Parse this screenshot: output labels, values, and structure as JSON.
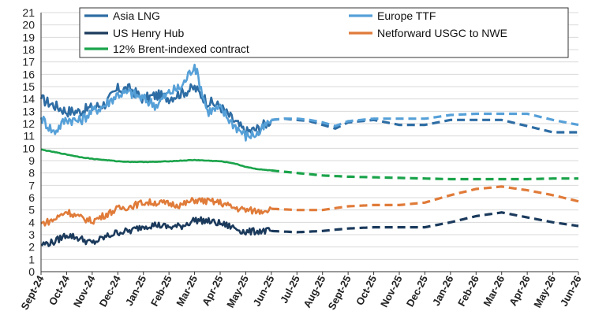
{
  "chart_data": {
    "type": "line",
    "title": "",
    "xlabel": "",
    "ylabel": "",
    "ylim": [
      0,
      21
    ],
    "yticks": [
      0,
      1,
      2,
      3,
      4,
      5,
      6,
      7,
      8,
      9,
      10,
      11,
      12,
      13,
      14,
      15,
      16,
      17,
      18,
      19,
      20,
      21
    ],
    "categories": [
      "Sept-24",
      "Oct-24",
      "Nov-24",
      "Dec-24",
      "Jan-25",
      "Feb-25",
      "Mar-25",
      "Apr-25",
      "May-25",
      "Jun-25",
      "Jul-25",
      "Aug-25",
      "Sept-25",
      "Oct-25",
      "Nov-25",
      "Dec-25",
      "Jan-26",
      "Feb-26",
      "Mar-26",
      "Apr-26",
      "May-26",
      "Jun-26"
    ],
    "grid": true,
    "legend_position": "top",
    "forecast_starts_at": 9.0,
    "series": [
      {
        "name": "Asia LNG",
        "color": "#2e6da4",
        "x": [
          0,
          0.5,
          1,
          1.5,
          2,
          2.5,
          3,
          3.5,
          4,
          4.5,
          5,
          5.5,
          6,
          6.5,
          7,
          7.5,
          8,
          8.5,
          9,
          9.5,
          10,
          10.5,
          11,
          11.5,
          12,
          13,
          14,
          15,
          16,
          17,
          18,
          19,
          20,
          21
        ],
        "values": [
          14.0,
          13.5,
          13.0,
          13.0,
          13.3,
          13.6,
          14.8,
          14.8,
          14.0,
          14.3,
          14.1,
          14.5,
          14.9,
          13.8,
          13.4,
          12.3,
          11.3,
          11.6,
          12.3,
          12.4,
          12.3,
          12.2,
          11.9,
          11.6,
          12.1,
          12.3,
          11.9,
          11.9,
          12.3,
          12.3,
          12.3,
          11.8,
          11.3,
          11.3
        ]
      },
      {
        "name": "Europe TTF",
        "color": "#56a0d8",
        "x": [
          0,
          0.5,
          1,
          1.5,
          2,
          2.5,
          3,
          3.5,
          4,
          4.5,
          5,
          5.5,
          6,
          6.5,
          7,
          7.5,
          8,
          8.5,
          9,
          9.5,
          10,
          10.5,
          11,
          11.5,
          12,
          13,
          14,
          15,
          16,
          17,
          18,
          19,
          20,
          21
        ],
        "values": [
          12.5,
          11.3,
          12.4,
          12.2,
          13.0,
          13.5,
          14.4,
          14.5,
          14.0,
          13.5,
          14.5,
          15.0,
          16.8,
          13.0,
          13.2,
          12.0,
          11.0,
          11.2,
          12.3,
          12.4,
          12.4,
          12.3,
          12.1,
          11.8,
          12.2,
          12.4,
          12.4,
          12.4,
          12.7,
          12.8,
          12.8,
          12.8,
          12.3,
          11.9
        ]
      },
      {
        "name": "US Henry Hub",
        "color": "#1b3a5c",
        "x": [
          0,
          0.5,
          1,
          1.5,
          2,
          2.5,
          3,
          3.5,
          4,
          4.5,
          5,
          5.5,
          6,
          6.5,
          7,
          7.5,
          8,
          8.5,
          9,
          10,
          11,
          12,
          13,
          14,
          15,
          16,
          17,
          18,
          19,
          20,
          21
        ],
        "values": [
          2.2,
          2.4,
          3.0,
          2.7,
          2.3,
          2.8,
          3.2,
          3.3,
          3.7,
          3.8,
          3.6,
          3.7,
          4.2,
          4.1,
          3.9,
          3.6,
          3.2,
          3.3,
          3.3,
          3.2,
          3.3,
          3.5,
          3.6,
          3.6,
          3.6,
          4.0,
          4.5,
          4.8,
          4.4,
          4.0,
          3.7
        ]
      },
      {
        "name": "Netforward USGC to NWE",
        "color": "#e07b39",
        "x": [
          0,
          0.5,
          1,
          1.5,
          2,
          2.5,
          3,
          3.5,
          4,
          4.5,
          5,
          5.5,
          6,
          6.5,
          7,
          7.5,
          8,
          8.5,
          9,
          10,
          11,
          12,
          13,
          14,
          15,
          16,
          17,
          18,
          19,
          20,
          21
        ],
        "values": [
          3.9,
          4.2,
          4.9,
          4.4,
          4.1,
          4.6,
          5.1,
          5.3,
          5.6,
          5.6,
          5.5,
          5.4,
          5.8,
          5.7,
          5.6,
          5.2,
          5.0,
          4.9,
          5.1,
          5.0,
          5.0,
          5.3,
          5.4,
          5.4,
          5.6,
          6.2,
          6.7,
          6.9,
          6.6,
          6.2,
          5.7
        ]
      },
      {
        "name": "12% Brent-indexed contract",
        "color": "#1aa34a",
        "x": [
          0,
          0.5,
          1,
          1.5,
          2,
          2.5,
          3,
          3.5,
          4,
          4.5,
          5,
          5.5,
          6,
          6.5,
          7,
          7.5,
          8,
          8.5,
          9,
          10,
          11,
          12,
          13,
          14,
          15,
          16,
          17,
          18,
          19,
          20,
          21
        ],
        "values": [
          9.9,
          9.7,
          9.5,
          9.3,
          9.15,
          9.05,
          8.95,
          8.9,
          8.9,
          8.9,
          8.95,
          9.0,
          9.05,
          9.0,
          8.95,
          8.8,
          8.5,
          8.3,
          8.2,
          8.0,
          7.8,
          7.7,
          7.65,
          7.6,
          7.55,
          7.5,
          7.5,
          7.5,
          7.5,
          7.55,
          7.55
        ]
      }
    ]
  }
}
